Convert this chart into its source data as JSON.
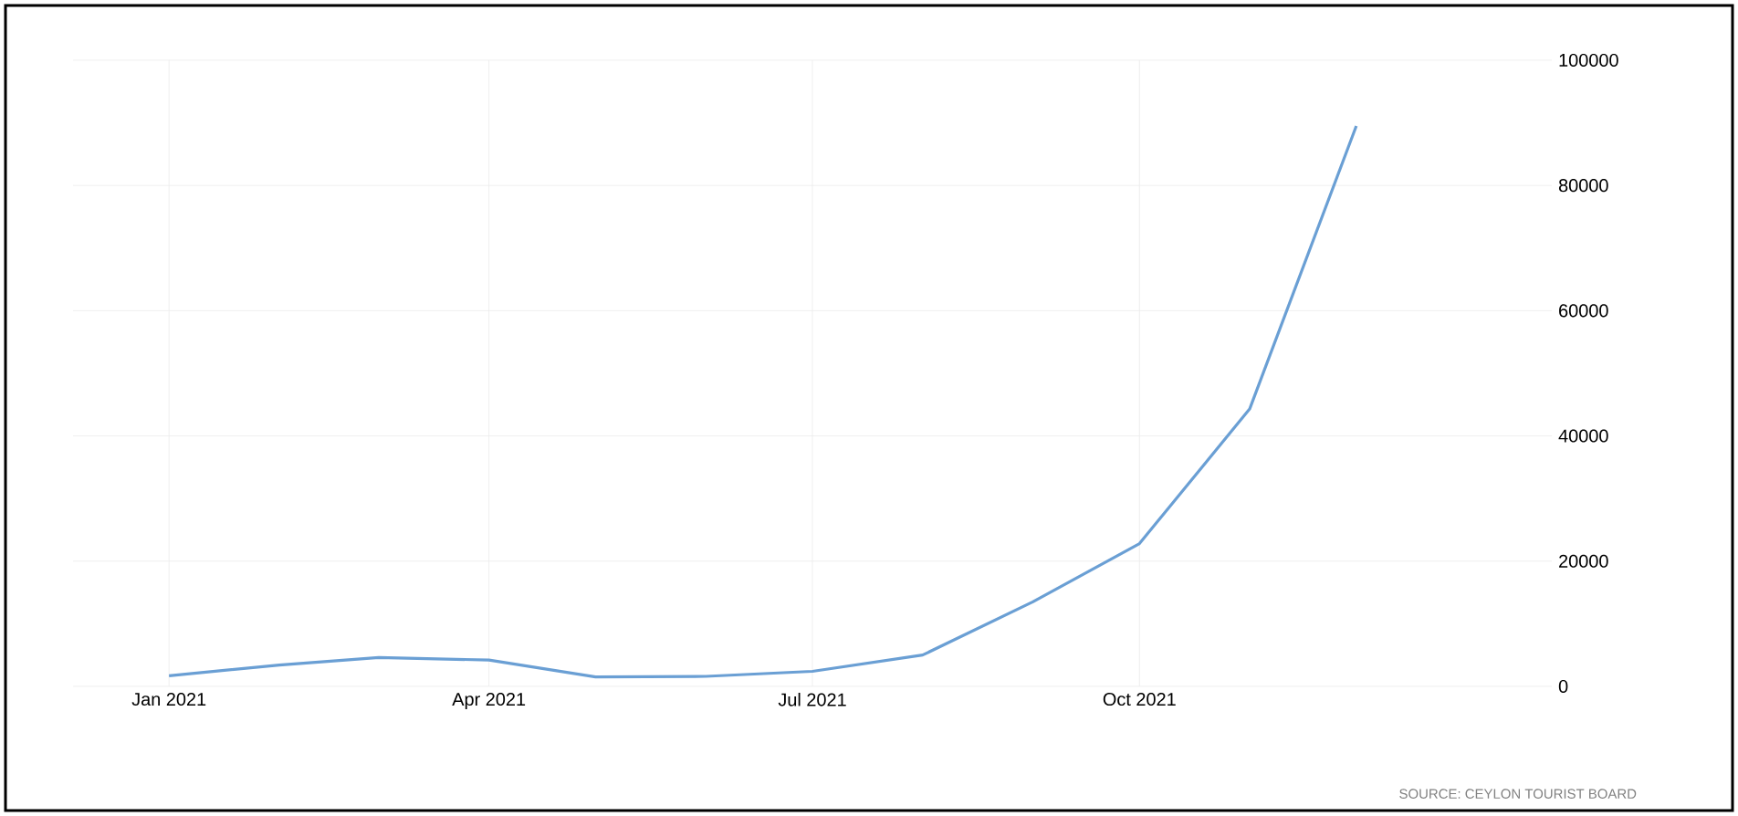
{
  "chart_data": {
    "type": "line",
    "x": [
      "2021-01",
      "2021-02",
      "2021-03",
      "2021-04",
      "2021-05",
      "2021-06",
      "2021-07",
      "2021-08",
      "2021-09",
      "2021-10",
      "2021-11",
      "2021-12"
    ],
    "series": [
      {
        "color": "#6a9fd4",
        "values": [
          1700,
          3400,
          4600,
          4200,
          1500,
          1600,
          2400,
          5000,
          13500,
          22800,
          44300,
          89500
        ]
      }
    ],
    "xlim": [
      "2020-12-05",
      "2022-01-25"
    ],
    "xticks": [
      {
        "value": "2021-01",
        "label": "Jan 2021"
      },
      {
        "value": "2021-04",
        "label": "Apr 2021"
      },
      {
        "value": "2021-07",
        "label": "Jul 2021"
      },
      {
        "value": "2021-10",
        "label": "Oct 2021"
      }
    ],
    "ylim": [
      0,
      100000
    ],
    "yticks": [
      0,
      20000,
      40000,
      60000,
      80000,
      100000
    ],
    "grid": true,
    "annotations": [
      "SOURCE: CEYLON TOURIST BOARD"
    ]
  }
}
